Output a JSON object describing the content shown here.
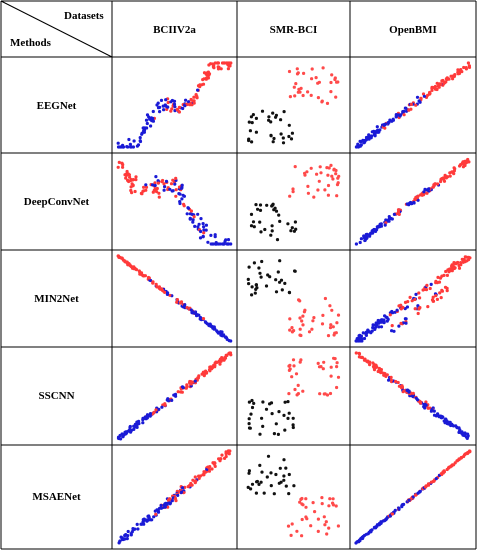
{
  "header": {
    "datasets_label": "Datasets",
    "methods_label": "Methods",
    "columns": [
      "BCIIV2a",
      "SMR-BCI",
      "OpenBMI"
    ]
  },
  "rows": [
    "EEGNet",
    "DeepConvNet",
    "MIN2Net",
    "SSCNN",
    "MSAENet"
  ],
  "colors": {
    "class_a_red": "#ff3a3a",
    "class_b_blue": "#1a1ad6",
    "smr_black": "#111111",
    "smr_red": "#ff4a4a",
    "grid_line": "#000000"
  },
  "plots": [
    [
      {
        "dataset": "BCIIV2a",
        "style": "sine-diagonal",
        "rising": true,
        "spread": 0.14
      },
      {
        "dataset": "SMR-BCI",
        "style": "two-clusters",
        "black": "bottom-left",
        "red": "top-right"
      },
      {
        "dataset": "OpenBMI",
        "style": "tight-diagonal",
        "rising": true,
        "spread": 0.06
      }
    ],
    [
      {
        "dataset": "BCIIV2a",
        "style": "wiggly-band",
        "rising": false,
        "spread": 0.18
      },
      {
        "dataset": "SMR-BCI",
        "style": "two-clusters",
        "black": "bottom-left",
        "red": "top-right"
      },
      {
        "dataset": "OpenBMI",
        "style": "tight-diagonal",
        "rising": true,
        "spread": 0.05
      }
    ],
    [
      {
        "dataset": "BCIIV2a",
        "style": "tight-diagonal",
        "rising": false,
        "spread": 0.03
      },
      {
        "dataset": "SMR-BCI",
        "style": "two-clusters",
        "black": "top-left",
        "red": "bottom-right"
      },
      {
        "dataset": "OpenBMI",
        "style": "double-band",
        "rising": true,
        "spread": 0.08
      }
    ],
    [
      {
        "dataset": "BCIIV2a",
        "style": "tight-diagonal",
        "rising": true,
        "spread": 0.05
      },
      {
        "dataset": "SMR-BCI",
        "style": "two-clusters",
        "black": "bottom-left",
        "red": "top-right"
      },
      {
        "dataset": "OpenBMI",
        "style": "tight-diagonal",
        "rising": false,
        "spread": 0.05
      }
    ],
    [
      {
        "dataset": "BCIIV2a",
        "style": "tight-diagonal",
        "rising": true,
        "spread": 0.07
      },
      {
        "dataset": "SMR-BCI",
        "style": "two-clusters",
        "black": "top-left",
        "red": "bottom-right"
      },
      {
        "dataset": "OpenBMI",
        "style": "tight-diagonal",
        "rising": true,
        "spread": 0.015
      }
    ]
  ]
}
